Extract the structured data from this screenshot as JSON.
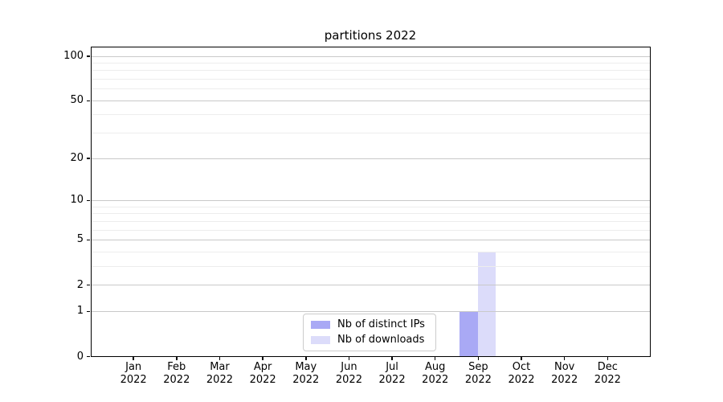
{
  "chart_data": {
    "type": "bar",
    "title": "partitions 2022",
    "categories": [
      "Jan",
      "Feb",
      "Mar",
      "Apr",
      "May",
      "Jun",
      "Jul",
      "Aug",
      "Sep",
      "Oct",
      "Nov",
      "Dec"
    ],
    "year_label": "2022",
    "series": [
      {
        "name": "Nb of distinct IPs",
        "color": "#a9a9f5",
        "values": [
          0,
          0,
          0,
          0,
          0,
          0,
          0,
          0,
          1,
          0,
          0,
          0
        ]
      },
      {
        "name": "Nb of downloads",
        "color": "#dcdcfa",
        "values": [
          0,
          0,
          0,
          0,
          0,
          0,
          0,
          0,
          4,
          0,
          0,
          0
        ]
      }
    ],
    "y_axis": {
      "scale": "log1p",
      "lim": [
        0,
        100
      ],
      "major_ticks": [
        0,
        1,
        2,
        5,
        10,
        20,
        50,
        100
      ],
      "minor_gridlines": [
        3,
        4,
        6,
        7,
        8,
        9,
        30,
        40,
        60,
        70,
        80,
        90
      ]
    },
    "grid": true,
    "legend_position": "lower center",
    "colors": {
      "major_grid": "#c9c9c9",
      "minor_grid": "#ededed",
      "axis": "#000000",
      "legend_border": "#cccccc"
    }
  }
}
